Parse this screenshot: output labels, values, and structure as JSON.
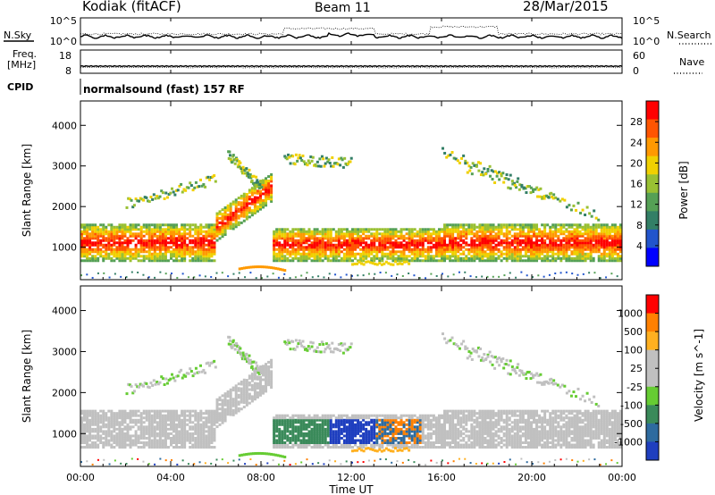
{
  "header": {
    "title_left": "Kodiak (fitACF)",
    "title_center": "Beam 11",
    "title_right": "28/Mar/2015"
  },
  "status_panels": {
    "nsky_label": "N.Sky",
    "nsearch_label": "N.Search",
    "noise_ticks": [
      "10^5",
      "10^0"
    ],
    "freq_label_1": "Freq.",
    "freq_label_2": "[MHz]",
    "freq_ticks": [
      "18",
      "8"
    ],
    "nave_label": "Nave",
    "nave_ticks": [
      "60",
      "0"
    ],
    "cpid_label": "CPID",
    "cpid_text": "normalsound (fast) 157 RF"
  },
  "chart_data": [
    {
      "type": "heatmap",
      "name": "power",
      "ylabel": "Slant Range [km]",
      "y_ticks": [
        1000,
        2000,
        3000,
        4000
      ],
      "ylim": [
        200,
        4600
      ],
      "xlim": [
        0,
        24
      ],
      "colorbar_label": "Power [dB]",
      "colorbar_ticks": [
        "28",
        "24",
        "20",
        "16",
        "12",
        "8",
        "4"
      ],
      "colors": [
        "#0000ff",
        "#2255cc",
        "#337f66",
        "#55a055",
        "#99c033",
        "#f0d000",
        "#ff9900",
        "#ff5500",
        "#ff0000"
      ]
    },
    {
      "type": "heatmap",
      "name": "velocity",
      "ylabel": "Slant Range [km]",
      "y_ticks": [
        1000,
        2000,
        3000,
        4000
      ],
      "ylim": [
        200,
        4600
      ],
      "xlim": [
        0,
        24
      ],
      "colorbar_label": "Velocity [m s^-1]",
      "colorbar_ticks": [
        "1000",
        "500",
        "100",
        "25",
        "-25",
        "-100",
        "-500",
        "-1000"
      ],
      "colors": [
        "#1f3fbf",
        "#2e6b9f",
        "#3a8a5a",
        "#66cc33",
        "#c0c0c0",
        "#c0c0c0",
        "#ffb020",
        "#ff8000",
        "#ff0000"
      ]
    }
  ],
  "x_axis": {
    "ticks": [
      "00:00",
      "04:00",
      "08:00",
      "12:00",
      "16:00",
      "20:00",
      "00:00"
    ],
    "label": "Time UT"
  }
}
